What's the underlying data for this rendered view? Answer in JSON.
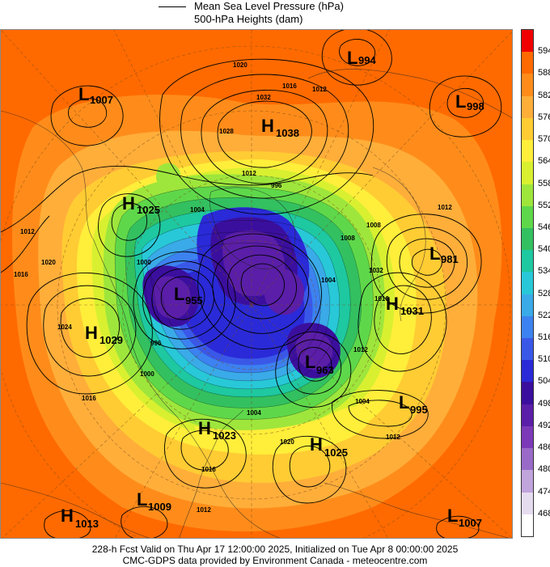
{
  "legend": {
    "mslp": "Mean Sea Level Pressure (hPa)",
    "heights": "500-hPa Heights (dam)"
  },
  "colorbar": {
    "labels": [
      "594",
      "588",
      "582",
      "576",
      "570",
      "564",
      "558",
      "552",
      "546",
      "540",
      "534",
      "528",
      "522",
      "516",
      "510",
      "504",
      "498",
      "492",
      "486",
      "480",
      "474",
      "468"
    ],
    "colors": [
      "#f00000",
      "#ff6a00",
      "#ff8c1a",
      "#ffae3a",
      "#ffcc33",
      "#ffee3a",
      "#d8f030",
      "#9ee63c",
      "#5ed84a",
      "#33c060",
      "#1ec8a0",
      "#28c8d8",
      "#3aaae8",
      "#3c82f0",
      "#3a58e8",
      "#2a2ad8",
      "#3b0f9e",
      "#5a1ea8",
      "#7c3ab8",
      "#9a6ac8",
      "#c0a4dc",
      "#e6dcf0",
      "#ffffff"
    ]
  },
  "pressure_systems": [
    {
      "type": "L",
      "value": "994"
    },
    {
      "type": "L",
      "value": "1007"
    },
    {
      "type": "L",
      "value": "998"
    },
    {
      "type": "H",
      "value": "1038"
    },
    {
      "type": "H",
      "value": "1025"
    },
    {
      "type": "L",
      "value": "981"
    },
    {
      "type": "L",
      "value": "955"
    },
    {
      "type": "H",
      "value": "1031"
    },
    {
      "type": "H",
      "value": "1029"
    },
    {
      "type": "L",
      "value": "963"
    },
    {
      "type": "L",
      "value": "995"
    },
    {
      "type": "H",
      "value": "1023"
    },
    {
      "type": "H",
      "value": "1025"
    },
    {
      "type": "H",
      "value": "1013"
    },
    {
      "type": "L",
      "value": "1009"
    },
    {
      "type": "L",
      "value": "1007"
    }
  ],
  "isobar_labels": [
    "1016",
    "1012",
    "1020",
    "1032",
    "1028",
    "1012",
    "1004",
    "996",
    "1008",
    "1012",
    "1012",
    "1020",
    "1016",
    "1024",
    "996",
    "1000",
    "1016",
    "1012",
    "1004",
    "1020",
    "1016",
    "1012",
    "1004",
    "1016",
    "1008",
    "1012",
    "1000",
    "1004",
    "1032"
  ],
  "footer": {
    "line1": "228-h Fcst Valid on Thu Apr 17 12:00:00 2025, Initialized on Tue Apr  8 00:00:00 2025",
    "line2": "CMC-GDPS data provided by Environment Canada - meteocentre.com"
  }
}
